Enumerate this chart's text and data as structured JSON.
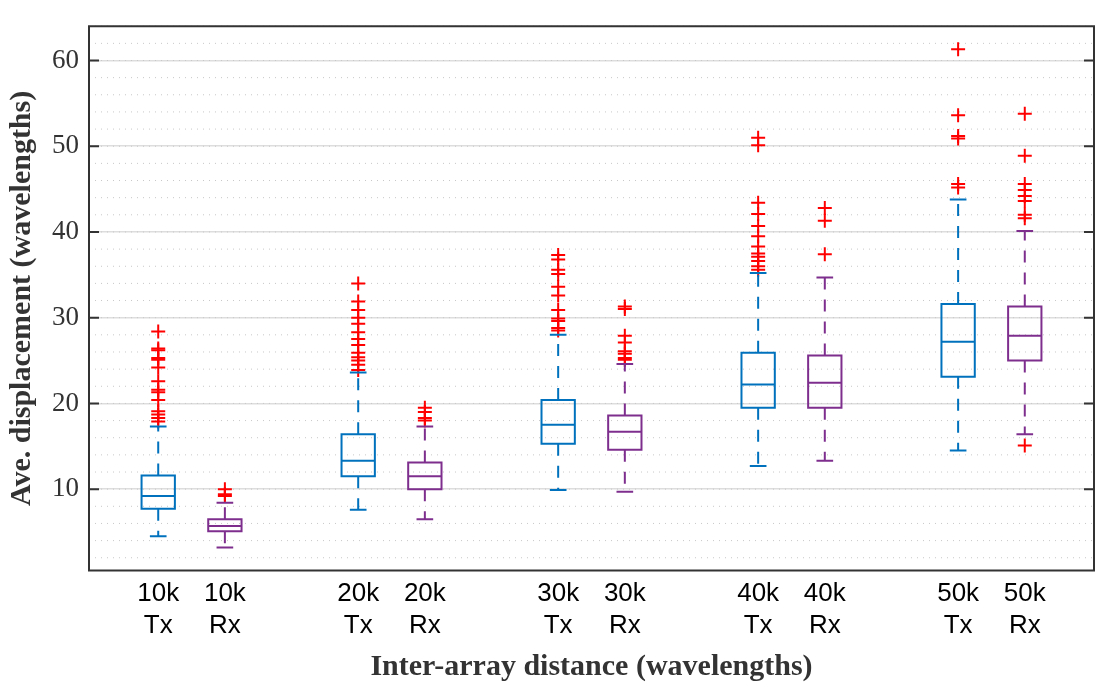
{
  "chart_data": {
    "type": "box",
    "xlabel": "Inter-array distance (wavelengths)",
    "ylabel": "Ave. displacement (wavelengths)",
    "categories": [
      "10k\nTx",
      "10k\nRx",
      null,
      "20k\nTx",
      "20k\nRx",
      null,
      "30k\nTx",
      "30k\nRx",
      null,
      "40k\nTx",
      "40k\nRx",
      null,
      "50k\nTx",
      "50k\nRx"
    ],
    "ylim": [
      0.5,
      64
    ],
    "yticks": [
      10,
      20,
      30,
      40,
      50,
      60
    ],
    "grid": true,
    "legend": false,
    "marker": "cross",
    "series": [
      {
        "color": "#0072bd",
        "boxes": [
          {
            "low": 4.5,
            "q1": 7.7,
            "median": 9.2,
            "q3": 11.6,
            "high": 17.3,
            "outliers": [
              28.4,
              26.4,
              26.2,
              25.3,
              25.1,
              24.2,
              22.6,
              21.6,
              21.3,
              20.4,
              19.1,
              18.7,
              18.3,
              17.9
            ]
          },
          null,
          null,
          {
            "low": 7.6,
            "q1": 11.5,
            "median": 13.3,
            "q3": 16.4,
            "high": 23.6,
            "outliers": [
              34.0,
              31.9,
              30.9,
              30.0,
              29.3,
              28.3,
              27.5,
              26.8,
              25.9,
              25.4,
              25.0,
              24.5,
              23.9
            ]
          },
          null,
          null,
          {
            "low": 9.9,
            "q1": 15.3,
            "median": 17.5,
            "q3": 20.4,
            "high": 28.0,
            "outliers": [
              37.3,
              36.8,
              35.6,
              35.1,
              33.6,
              32.6,
              30.9,
              29.9,
              29.6,
              28.8,
              28.5
            ]
          },
          null,
          null,
          {
            "low": 12.7,
            "q1": 19.5,
            "median": 22.2,
            "q3": 25.9,
            "high": 35.2,
            "outliers": [
              51.0,
              50.1,
              43.4,
              42.1,
              40.7,
              39.5,
              38.3,
              37.5,
              37.1,
              36.6,
              36.0,
              35.6
            ]
          },
          null,
          null,
          {
            "low": 14.5,
            "q1": 23.1,
            "median": 27.2,
            "q3": 31.6,
            "high": 43.8,
            "outliers": [
              61.3,
              53.6,
              51.2,
              50.9,
              45.6,
              45.2
            ]
          },
          null
        ]
      },
      {
        "color": "#7e2f8e",
        "boxes": [
          null,
          {
            "low": 3.2,
            "q1": 5.1,
            "median": 5.7,
            "q3": 6.5,
            "high": 8.4,
            "outliers": [
              10.0,
              9.4,
              9.2
            ]
          },
          null,
          null,
          {
            "low": 6.5,
            "q1": 10.0,
            "median": 11.5,
            "q3": 13.1,
            "high": 17.3,
            "outliers": [
              19.5,
              19.0,
              18.3,
              18.0
            ]
          },
          null,
          null,
          {
            "low": 9.7,
            "q1": 14.6,
            "median": 16.7,
            "q3": 18.6,
            "high": 24.6,
            "outliers": [
              31.3,
              31.0,
              27.9,
              27.1,
              26.1,
              25.8,
              25.3,
              25.1
            ]
          },
          null,
          null,
          {
            "low": 13.3,
            "q1": 19.5,
            "median": 22.4,
            "q3": 25.6,
            "high": 34.7,
            "outliers": [
              42.8,
              41.3,
              37.4
            ]
          },
          null,
          null,
          {
            "low": 16.4,
            "q1": 25.0,
            "median": 27.9,
            "q3": 31.3,
            "high": 40.1,
            "outliers": [
              53.8,
              48.9,
              45.6,
              44.9,
              44.2,
              43.6,
              42.0,
              41.6,
              15.1
            ]
          }
        ]
      }
    ]
  }
}
